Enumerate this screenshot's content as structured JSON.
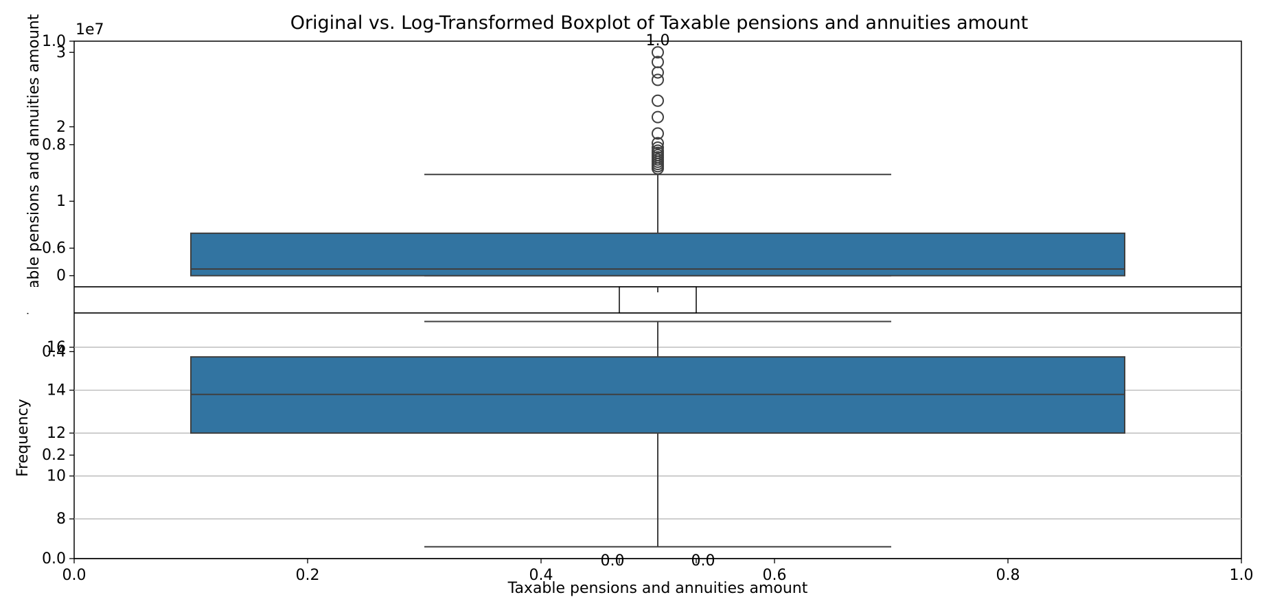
{
  "figure": {
    "title": "Original vs. Log-Transformed Boxplot of Taxable pensions and annuities amount"
  },
  "chart_data": [
    {
      "type": "box",
      "name": "original",
      "ylabel": "Taxable pensions and annuities amount",
      "y_offset_text": "1e7",
      "ylim": [
        -0.15,
        3.15
      ],
      "y_ticks": [
        0,
        1,
        2,
        3
      ],
      "grid": false,
      "box_color": "#3274a1",
      "box": {
        "q1": 0.0,
        "median": 0.09,
        "q3": 0.57,
        "whisker_low": 0.0,
        "whisker_high": 1.36
      },
      "outliers": [
        1.44,
        1.47,
        1.5,
        1.53,
        1.56,
        1.59,
        1.62,
        1.65,
        1.68,
        1.72,
        1.78,
        1.91,
        2.13,
        2.35,
        2.63,
        2.73,
        2.87,
        3.0
      ]
    },
    {
      "type": "box",
      "name": "log_transformed",
      "ylabel": "Frequency",
      "xlabel": "Taxable pensions and annuities amount",
      "ylim": [
        6.15,
        17.6
      ],
      "y_ticks": [
        8,
        10,
        12,
        14,
        16
      ],
      "grid": true,
      "box_color": "#3274a1",
      "box": {
        "q1": 12.0,
        "median": 13.8,
        "q3": 15.55,
        "whisker_low": 6.7,
        "whisker_high": 17.2
      },
      "outliers": []
    },
    {
      "type": "empty",
      "name": "shared_axes",
      "x_ticks": [
        "0.0",
        "0.2",
        "0.4",
        "0.6",
        "0.8",
        "1.0"
      ],
      "y_ticks": [
        "0.0",
        "0.2",
        "0.4",
        "0.6",
        "0.8",
        "1.0"
      ]
    },
    {
      "type": "empty",
      "name": "inset_axes",
      "x_ticks": [
        "0.0",
        "0.0"
      ],
      "y_ticks": [
        "1.0"
      ]
    }
  ]
}
